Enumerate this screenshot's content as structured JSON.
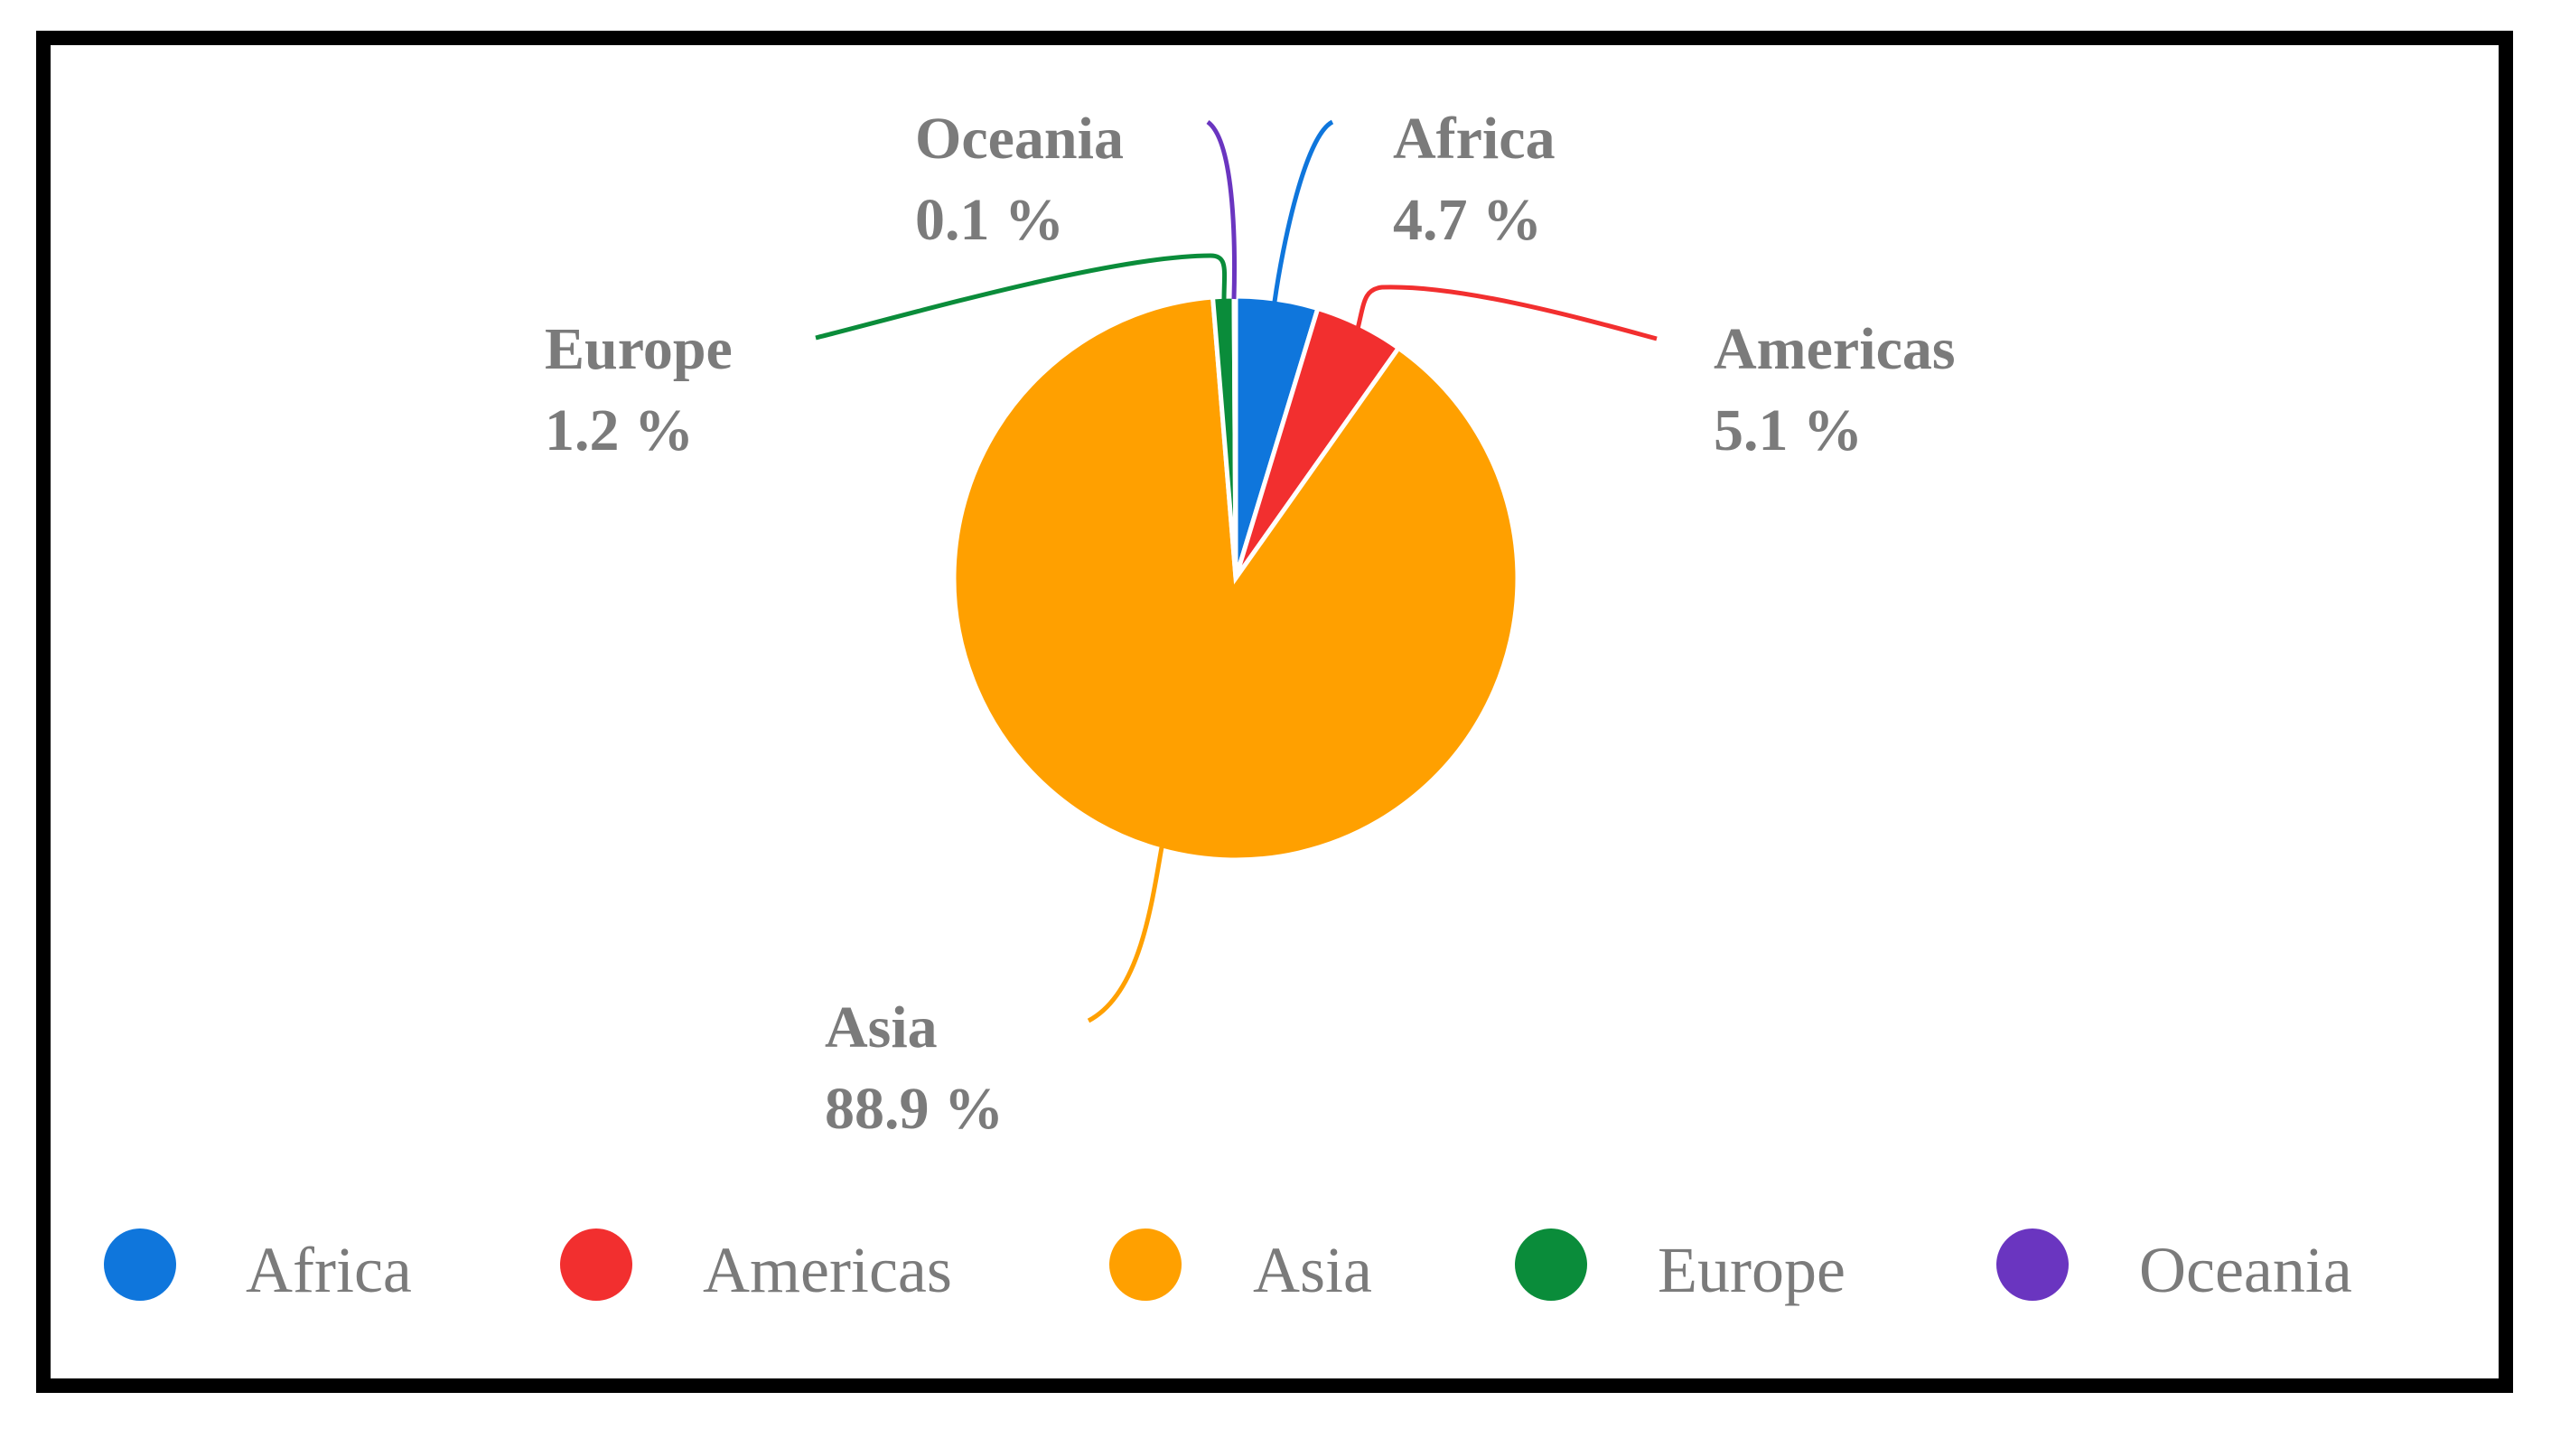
{
  "chart_data": {
    "type": "pie",
    "slices": [
      {
        "name": "Africa",
        "value": 4.7,
        "label": "4.7 %",
        "color": "#0f76dc"
      },
      {
        "name": "Americas",
        "value": 5.1,
        "label": "5.1 %",
        "color": "#f22f2f"
      },
      {
        "name": "Asia",
        "value": 88.9,
        "label": "88.9 %",
        "color": "#ffa000"
      },
      {
        "name": "Europe",
        "value": 1.2,
        "label": "1.2 %",
        "color": "#0a8c3a"
      },
      {
        "name": "Oceania",
        "value": 0.1,
        "label": "0.1 %",
        "color": "#6a35c0"
      }
    ],
    "legend_position": "bottom",
    "start_angle": "top",
    "direction": "clockwise"
  }
}
